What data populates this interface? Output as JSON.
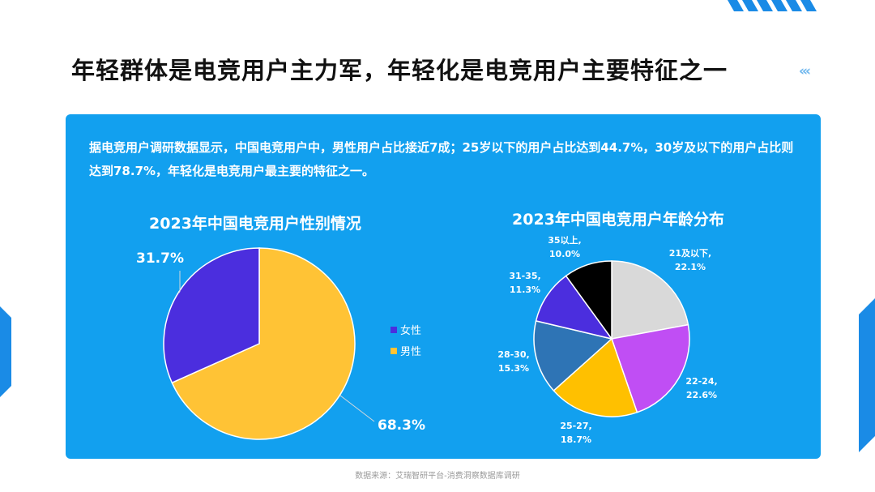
{
  "header": {
    "title": "年轻群体是电竞用户主力军，年轻化是电竞用户主要特征之一",
    "chevrons": "‹‹‹"
  },
  "summary": {
    "text": "据电竞用户调研数据显示，中国电竞用户中，男性用户占比接近7成；25岁以下的用户占比达到44.7%，30岁及以下的用户占比则达到78.7%，年轻化是电竞用户最主要的特征之一。"
  },
  "colors": {
    "panel": "#12a0ef",
    "accent_stripes": "#1a8be6",
    "female": "#4b2ede",
    "male": "#ffc335",
    "age_21_below": "#d9d9d9",
    "age_22_24": "#c04ef4",
    "age_25_27": "#ffc000",
    "age_28_30": "#2e74b5",
    "age_31_35": "#4b2ede",
    "age_35_above": "#000000"
  },
  "chart_data": [
    {
      "type": "pie",
      "title": "2023年中国电竞用户性别情况",
      "slices": [
        {
          "label": "女性",
          "value": 31.7,
          "display": "31.7%"
        },
        {
          "label": "男性",
          "value": 68.3,
          "display": "68.3%"
        }
      ],
      "legend": [
        "女性",
        "男性"
      ],
      "legend_position": "right"
    },
    {
      "type": "pie",
      "title": "2023年中国电竞用户年龄分布",
      "slices": [
        {
          "label": "21及以下,",
          "value": 22.1,
          "display": "22.1%"
        },
        {
          "label": "22-24,",
          "value": 22.6,
          "display": "22.6%"
        },
        {
          "label": "25-27,",
          "value": 18.7,
          "display": "18.7%"
        },
        {
          "label": "28-30,",
          "value": 15.3,
          "display": "15.3%"
        },
        {
          "label": "31-35,",
          "value": 11.3,
          "display": "11.3%"
        },
        {
          "label": "35以上,",
          "value": 10.0,
          "display": "10.0%"
        }
      ]
    }
  ],
  "footer": {
    "source": "数据来源：艾瑞智研平台-消费洞察数据库调研"
  }
}
